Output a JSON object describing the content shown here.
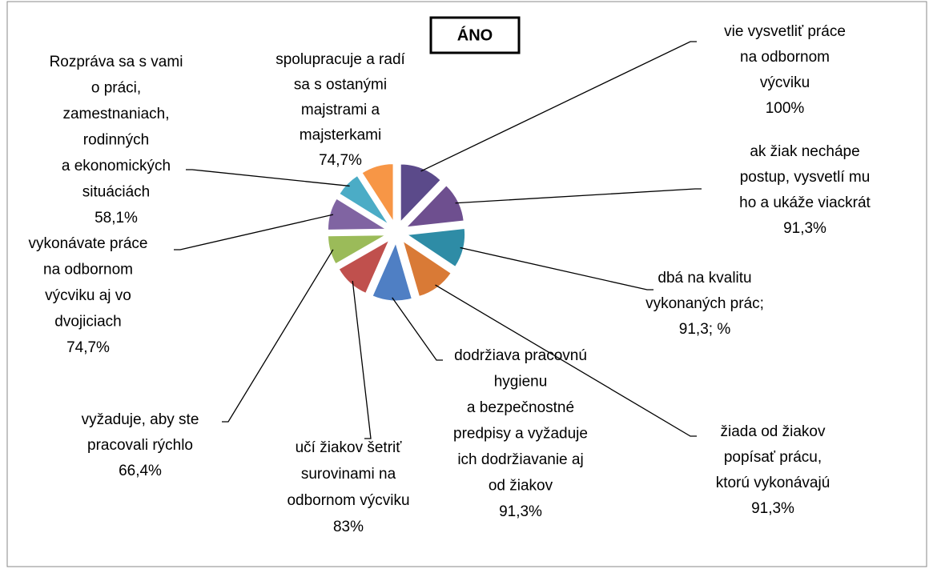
{
  "chart_data": {
    "type": "pie",
    "title": "ÁNO",
    "categories": [
      [
        "vie vysvetliť práce",
        "na odbornom",
        "výcviku"
      ],
      [
        "ak žiak nechápe",
        "postup, vysvetlí mu",
        "ho a ukáže viackrát"
      ],
      [
        "dbá na kvalitu",
        "vykonaných prác;"
      ],
      [
        "žiada od žiakov",
        "popísať prácu,",
        "ktorú vykonávajú"
      ],
      [
        "dodržiava pracovnú",
        "hygienu",
        "a bezpečnostné",
        "predpisy a vyžaduje",
        "ich dodržiavanie aj",
        "od žiakov"
      ],
      [
        "učí žiakov šetriť",
        "surovinami na",
        "odbornom výcviku"
      ],
      [
        "vyžaduje, aby ste",
        "pracovali rýchlo"
      ],
      [
        "vykonávate práce",
        "na odbornom",
        "výcviku aj vo",
        "dvojiciach"
      ],
      [
        "Rozpráva sa s vami",
        "o práci,",
        "zamestnaniach,",
        "rodinných",
        "a ekonomických",
        "situáciách"
      ],
      [
        "spolupracuje a radí",
        "sa s ostanými",
        "majstrami a",
        "majsterkami"
      ]
    ],
    "values": [
      100,
      91.3,
      91.3,
      91.3,
      91.3,
      83,
      66.4,
      74.7,
      58.1,
      74.7
    ],
    "value_labels": [
      "100%",
      "91,3%",
      "91,3; %",
      "91,3%",
      "91,3%",
      "83%",
      "66,4%",
      "74,7%",
      "58,1%",
      "74,7%"
    ],
    "colors": [
      "#5b4a8a",
      "#6e4f8f",
      "#2e8ca6",
      "#d97a36",
      "#4f7fc4",
      "#c0504d",
      "#9bbb59",
      "#8064a2",
      "#4bacc6",
      "#f79646"
    ]
  }
}
